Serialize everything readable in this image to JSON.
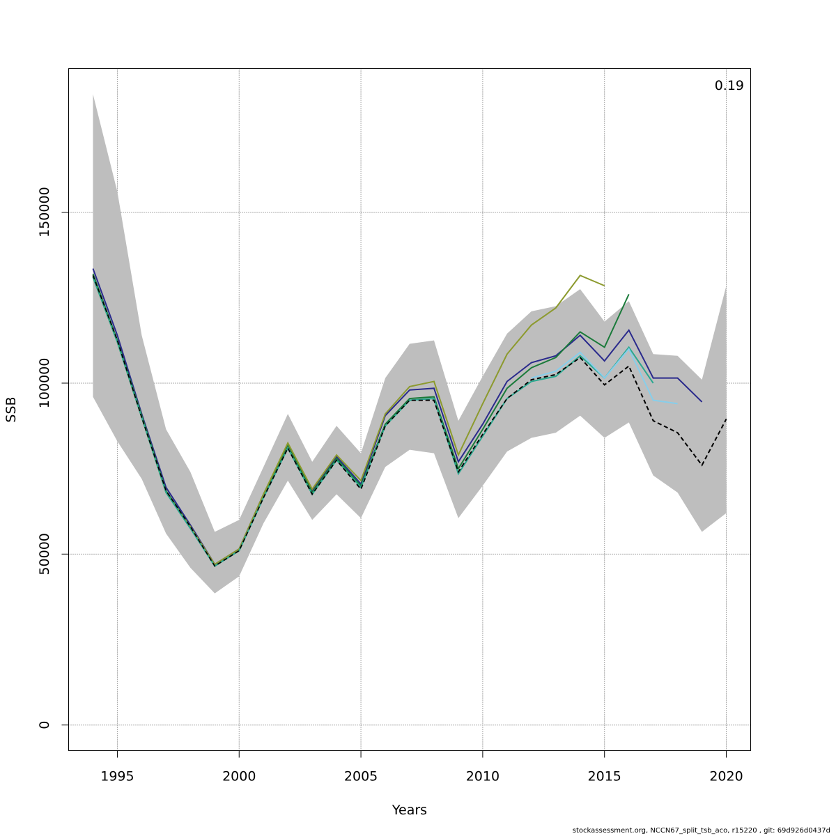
{
  "chart_data": {
    "type": "line",
    "title": "",
    "xlabel": "Years",
    "ylabel": "SSB",
    "xlim": [
      1993,
      2021
    ],
    "ylim": [
      -7500,
      192000
    ],
    "x_ticks": [
      1995,
      2000,
      2005,
      2010,
      2015,
      2020
    ],
    "x_tick_labels": [
      "1995",
      "2000",
      "2005",
      "2010",
      "2015",
      "2020"
    ],
    "y_ticks": [
      0,
      50000,
      100000,
      150000
    ],
    "y_tick_labels": [
      "0",
      "50000",
      "100000",
      "150000"
    ],
    "grid": true,
    "annotation": "0.19",
    "confidence_band": {
      "color": "#bebebe",
      "x": [
        1994,
        1995,
        1996,
        1997,
        1998,
        1999,
        2000,
        2001,
        2002,
        2003,
        2004,
        2005,
        2006,
        2007,
        2008,
        2009,
        2010,
        2011,
        2012,
        2013,
        2014,
        2015,
        2016,
        2017,
        2018,
        2019,
        2020
      ],
      "lower": [
        96000,
        83000,
        72000,
        56000,
        46000,
        38500,
        43500,
        59000,
        71500,
        60000,
        67500,
        60500,
        75500,
        80500,
        79500,
        60500,
        70000,
        80000,
        84000,
        85500,
        90500,
        84000,
        88500,
        73000,
        68000,
        56500,
        62000
      ],
      "upper": [
        184500,
        156000,
        114000,
        86500,
        74000,
        56500,
        60000,
        75500,
        91000,
        77000,
        87500,
        79500,
        101500,
        111500,
        112500,
        89000,
        102000,
        114500,
        121000,
        122500,
        127500,
        118000,
        124000,
        108500,
        108000,
        101000,
        128500
      ]
    },
    "series": [
      {
        "color": "#2f2f2f",
        "dash": true,
        "x": [
          1994,
          1995,
          1996,
          1997,
          1998,
          1999,
          2000,
          2001,
          2002,
          2003,
          2004,
          2005,
          2006,
          2007,
          2008,
          2009,
          2010,
          2011,
          2012,
          2013,
          2014,
          2015,
          2016,
          2017,
          2018,
          2019,
          2020
        ],
        "values": [
          131500,
          112500,
          90000,
          68500,
          58000,
          46500,
          51000,
          66500,
          81000,
          67500,
          77500,
          69000,
          87500,
          95000,
          95000,
          74000,
          85000,
          95500,
          101000,
          102500,
          107500,
          99500,
          105000,
          89000,
          85500,
          76000,
          89500
        ]
      },
      {
        "color": "#2a2a8c",
        "x": [
          1994,
          1995,
          1996,
          1997,
          1998,
          1999,
          2000,
          2001,
          2002,
          2003,
          2004,
          2005,
          2006,
          2007,
          2008,
          2009,
          2010,
          2011,
          2012,
          2013,
          2014,
          2015,
          2016,
          2017,
          2018,
          2019
        ],
        "values": [
          133500,
          114000,
          91000,
          69500,
          58500,
          47000,
          51500,
          67500,
          82000,
          68500,
          78500,
          70500,
          90500,
          98000,
          98500,
          77000,
          88000,
          100500,
          106000,
          108000,
          114000,
          106500,
          115500,
          101500,
          101500,
          94500
        ]
      },
      {
        "color": "#1a7a3a",
        "x": [
          1994,
          1995,
          1996,
          1997,
          1998,
          1999,
          2000,
          2001,
          2002,
          2003,
          2004,
          2005,
          2006,
          2007,
          2008,
          2009,
          2010,
          2011,
          2012,
          2013,
          2014,
          2015,
          2016
        ],
        "values": [
          132000,
          112500,
          90500,
          68500,
          58000,
          46500,
          51000,
          67000,
          82000,
          68000,
          78000,
          70000,
          88000,
          95500,
          96000,
          75000,
          86500,
          98500,
          104500,
          107500,
          115000,
          110500,
          126000
        ]
      },
      {
        "color": "#8c9a2e",
        "x": [
          1994,
          1995,
          1996,
          1997,
          1998,
          1999,
          2000,
          2001,
          2002,
          2003,
          2004,
          2005,
          2006,
          2007,
          2008,
          2009,
          2010,
          2011,
          2012,
          2013,
          2014,
          2015
        ],
        "values": [
          131000,
          112000,
          90000,
          68000,
          58000,
          47000,
          51500,
          67500,
          82500,
          69000,
          79000,
          71500,
          91000,
          99000,
          100500,
          79000,
          94000,
          108500,
          117000,
          122000,
          131500,
          128500
        ]
      },
      {
        "color": "#2aa890",
        "x": [
          1994,
          1995,
          1996,
          1997,
          1998,
          1999,
          2000,
          2001,
          2002,
          2003,
          2004,
          2005,
          2006,
          2007,
          2008,
          2009,
          2010,
          2011,
          2012,
          2013,
          2014,
          2015,
          2016,
          2017
        ],
        "values": [
          131000,
          112000,
          90000,
          68000,
          57500,
          46500,
          51000,
          66500,
          81000,
          67500,
          77500,
          69500,
          87500,
          95000,
          95500,
          73500,
          84500,
          95500,
          100500,
          102000,
          108000,
          101500,
          110500,
          100000
        ]
      },
      {
        "color": "#87ceeb",
        "x": [
          2012,
          2013,
          2014,
          2015,
          2016,
          2017,
          2018
        ],
        "values": [
          101500,
          103500,
          109000,
          101500,
          110000,
          95000,
          94000
        ]
      }
    ]
  },
  "footer": {
    "text": "stockassessment.org, NCCN67_split_tsb_aco, r15220 , git: 69d926d0437d"
  }
}
